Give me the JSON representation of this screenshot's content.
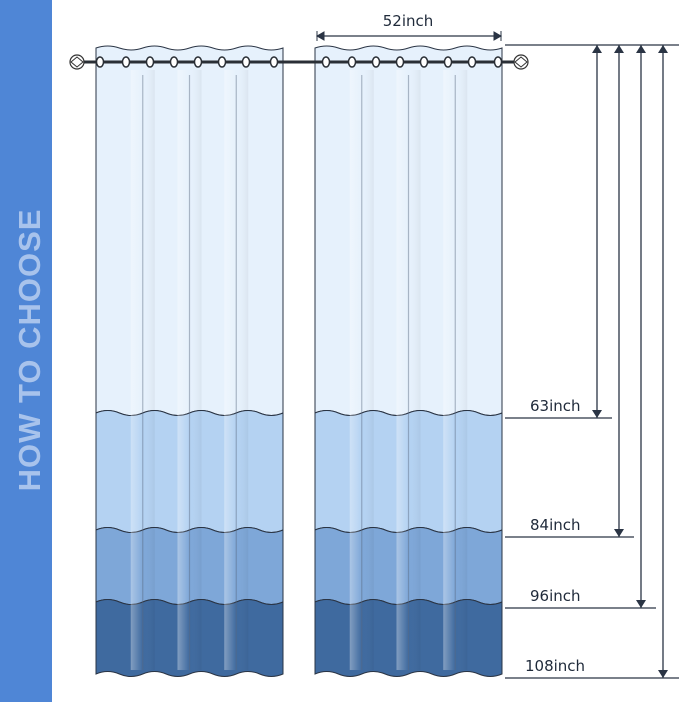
{
  "side_title": "HOW TO CHOOSE",
  "width_label": "52inch",
  "lengths": [
    "63inch",
    "84inch",
    "96inch",
    "108inch"
  ],
  "colors": {
    "side_bar": "#4f86d6",
    "band_1": "#e6f1fc",
    "band_2": "#b4d2f2",
    "band_3": "#7ea7d8",
    "band_4": "#3f6a9f",
    "line": "#2a3444"
  },
  "icons": [
    "curtain-rod-finial",
    "grommet",
    "arrow"
  ]
}
